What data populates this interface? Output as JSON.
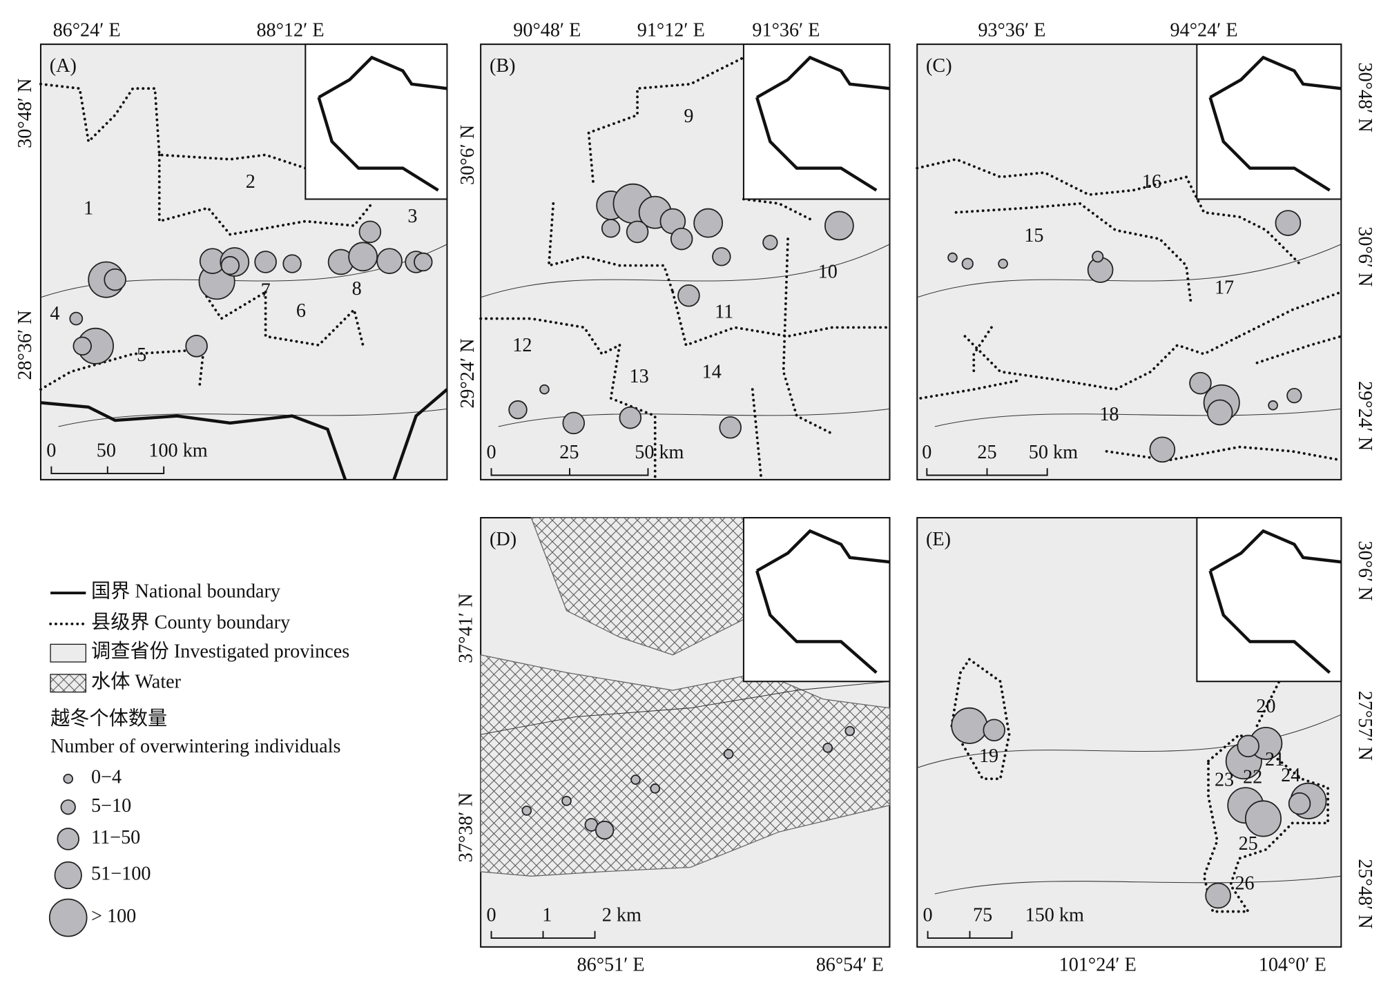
{
  "panels": [
    {
      "label": "(A)",
      "top_ticks": [
        "86°24′ E",
        "88°12′ E"
      ],
      "side_ticks": [
        "30°48′ N",
        "28°36′ N"
      ],
      "scale": [
        "0",
        "50",
        "100 km"
      ],
      "regions": [
        "1",
        "2",
        "3",
        "4",
        "5",
        "6",
        "7",
        "8"
      ]
    },
    {
      "label": "(B)",
      "top_ticks": [
        "90°48′ E",
        "91°12′ E",
        "91°36′ E"
      ],
      "side_ticks": [
        "30°6′ N",
        "29°24′ N"
      ],
      "scale": [
        "0",
        "25",
        "50 km"
      ],
      "regions": [
        "9",
        "10",
        "11",
        "12",
        "13",
        "14"
      ]
    },
    {
      "label": "(C)",
      "top_ticks": [
        "93°36′ E",
        "94°24′ E"
      ],
      "side_ticks": [
        "30°48′ N",
        "30°6′ N",
        "29°24′ N"
      ],
      "scale": [
        "0",
        "25",
        "50 km"
      ],
      "regions": [
        "15",
        "16",
        "17",
        "18"
      ]
    },
    {
      "label": "(D)",
      "bottom_ticks": [
        "86°51′ E",
        "86°54′ E"
      ],
      "side_ticks": [
        "37°41′ N",
        "37°38′ N"
      ],
      "scale": [
        "0",
        "1",
        "2 km"
      ],
      "regions": []
    },
    {
      "label": "(E)",
      "bottom_ticks": [
        "101°24′ E",
        "104°0′ E"
      ],
      "side_ticks": [
        "30°6′ N",
        "27°57′ N",
        "25°48′ N"
      ],
      "scale": [
        "0",
        "75",
        "150 km"
      ],
      "regions": [
        "19",
        "20",
        "21",
        "22",
        "23",
        "24",
        "25",
        "26"
      ]
    }
  ],
  "legend": {
    "items": [
      "国界 National boundary",
      "县级界 County boundary",
      "调查省份 Investigated provinces",
      "水体 Water"
    ],
    "size_title": "越冬个体数量",
    "size_subtitle": "Number of overwintering individuals",
    "sizes": [
      "0−4",
      "5−10",
      "11−50",
      "51−100",
      "> 100"
    ]
  }
}
